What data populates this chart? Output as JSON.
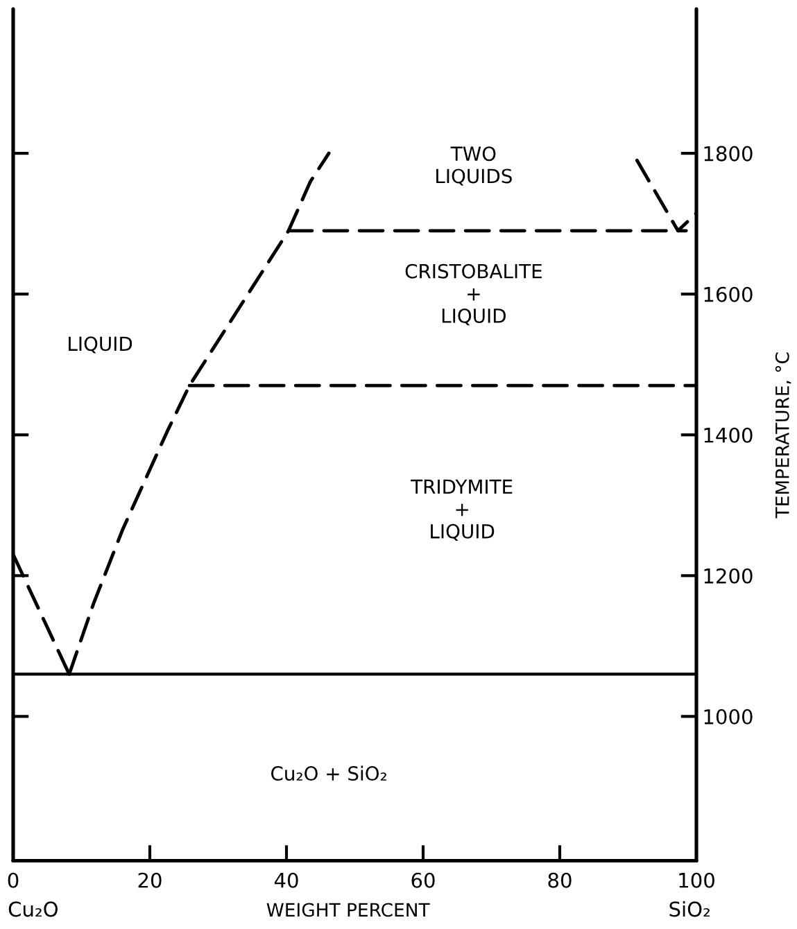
{
  "chart_data": {
    "type": "line",
    "xlabel": "WEIGHT PERCENT",
    "ylabel": "TEMPERATURE, °C",
    "line_style": "dashed",
    "xlim": [
      0,
      100
    ],
    "xticks": [
      0,
      20,
      40,
      60,
      80,
      100
    ],
    "ylim": [
      795,
      2005
    ],
    "yticks": [
      1000,
      1200,
      1400,
      1600,
      1800
    ],
    "series": [
      {
        "color": "#000000",
        "x": [
          0,
          8.2
        ],
        "values": [
          1230,
          1060
        ]
      },
      {
        "color": "#000000",
        "x": [
          8.2,
          11.75,
          16,
          20.2,
          22.6,
          25.8,
          40.3,
          43.5,
          46.2
        ],
        "values": [
          1060,
          1160,
          1265,
          1355,
          1406,
          1470,
          1690,
          1760,
          1800
        ]
      },
      {
        "color": "#000000",
        "x": [
          25.8,
          100
        ],
        "values": [
          1470,
          1470
        ]
      },
      {
        "color": "#000000",
        "x": [
          40.3,
          98.5
        ],
        "values": [
          1690,
          1690
        ]
      },
      {
        "color": "#000000",
        "x": [
          91.3,
          97.3,
          100
        ],
        "values": [
          1790,
          1690,
          1715
        ]
      }
    ],
    "ref_lines": [
      {
        "axis": "y",
        "value": 1060,
        "color": "#000000",
        "line_style": "solid"
      }
    ],
    "annotations": [
      "LIQUID",
      "TWO\nLIQUIDS",
      "CRISTOBALITE\n+\nLIQUID",
      "TRIDYMITE\n+\nLIQUID",
      "Cu₂O + SiO₂",
      "Cu₂O",
      "SiO₂"
    ]
  }
}
